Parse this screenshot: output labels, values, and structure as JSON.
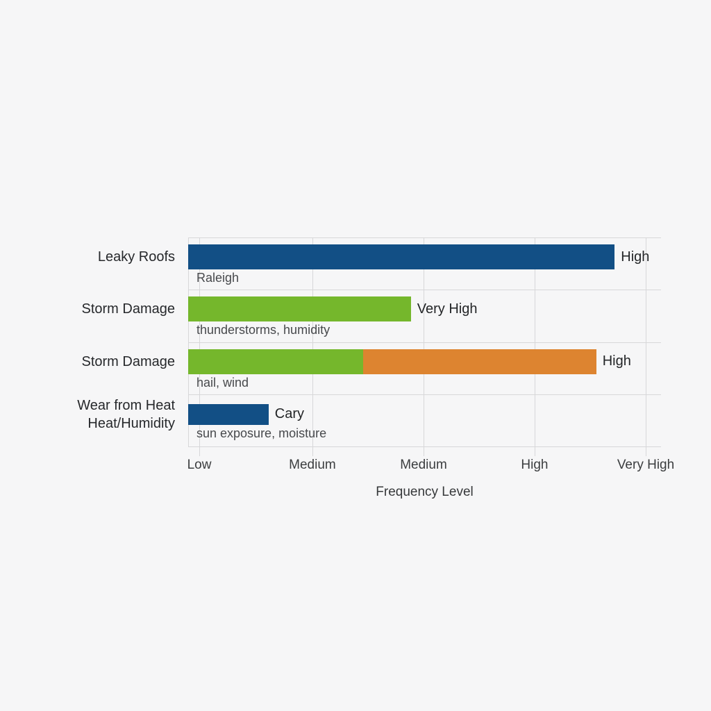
{
  "colors": {
    "blue": "#124f85",
    "green": "#75b72c",
    "orange": "#dd8430",
    "grid": "#d7d7d9",
    "background": "#f6f6f7"
  },
  "chart_data": {
    "type": "bar",
    "orientation": "horizontal",
    "title": "",
    "xlabel": "Frequency Level",
    "grid": true,
    "x_ticks": [
      "Low",
      "Medium",
      "Medium",
      "High",
      "Very High"
    ],
    "x_tick_pct": [
      2.35,
      26.28,
      49.78,
      73.27,
      96.77
    ],
    "rows": [
      {
        "category": "Leaky Roofs",
        "sublabel": "Raleigh",
        "value_label": "High",
        "segments": [
          {
            "color_key": "blue",
            "length_pct": 90.2
          }
        ]
      },
      {
        "category": "Storm Damage",
        "sublabel": "thunderstorms, humidity",
        "value_label": "Very High",
        "segments": [
          {
            "color_key": "green",
            "length_pct": 47.1
          }
        ]
      },
      {
        "category": "Storm Damage",
        "sublabel": "hail, wind",
        "value_label": "High",
        "segments": [
          {
            "color_key": "green",
            "length_pct": 37.0
          },
          {
            "color_key": "orange",
            "length_pct": 49.3
          }
        ]
      },
      {
        "category": "Wear from Heat\nHeat/Humidity",
        "sublabel": "sun exposure, moisture",
        "value_label": "Cary",
        "segments": [
          {
            "color_key": "blue",
            "length_pct": 17.0
          }
        ]
      }
    ]
  }
}
